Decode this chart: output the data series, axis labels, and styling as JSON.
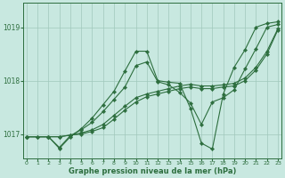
{
  "title": "Graphe pression niveau de la mer (hPa)",
  "bg_color": "#c8e8e0",
  "grid_color": "#a0c8bc",
  "line_color": "#2d6e3e",
  "xlim": [
    -0.3,
    23.3
  ],
  "ylim": [
    1016.55,
    1019.45
  ],
  "yticks": [
    1017,
    1018,
    1019
  ],
  "xticks": [
    0,
    1,
    2,
    3,
    4,
    5,
    6,
    7,
    8,
    9,
    10,
    11,
    12,
    13,
    14,
    15,
    16,
    17,
    18,
    19,
    20,
    21,
    22,
    23
  ],
  "series": [
    {
      "x": [
        0,
        1,
        2,
        3,
        4,
        5,
        6,
        7,
        8,
        9,
        10,
        11,
        12,
        13,
        14,
        15,
        16,
        17,
        18,
        19,
        20,
        21,
        22,
        23
      ],
      "y": [
        1016.95,
        1016.95,
        1016.95,
        1016.73,
        1016.95,
        1017.1,
        1017.3,
        1017.55,
        1017.8,
        1018.18,
        1018.55,
        1018.55,
        1018.0,
        1017.97,
        1017.95,
        1017.48,
        1016.83,
        1016.72,
        1017.75,
        1018.25,
        1018.58,
        1019.0,
        1019.07,
        1019.1
      ]
    },
    {
      "x": [
        0,
        1,
        2,
        3,
        4,
        5,
        6,
        7,
        8,
        9,
        10,
        11,
        12,
        13,
        14,
        15,
        16,
        17,
        18,
        19,
        20,
        21,
        22,
        23
      ],
      "y": [
        1016.95,
        1016.95,
        1016.95,
        1016.75,
        1016.97,
        1017.08,
        1017.22,
        1017.42,
        1017.65,
        1017.88,
        1018.28,
        1018.35,
        1017.98,
        1017.92,
        1017.78,
        1017.58,
        1017.18,
        1017.6,
        1017.68,
        1017.83,
        1018.22,
        1018.6,
        1019.0,
        1019.05
      ]
    },
    {
      "x": [
        0,
        2,
        3,
        4,
        5,
        6,
        7,
        8,
        9,
        10,
        11,
        12,
        13,
        14,
        15,
        16,
        17,
        18,
        19,
        20,
        21,
        22,
        23
      ],
      "y": [
        1016.95,
        1016.95,
        1016.95,
        1016.98,
        1017.02,
        1017.08,
        1017.18,
        1017.35,
        1017.52,
        1017.68,
        1017.75,
        1017.8,
        1017.85,
        1017.9,
        1017.93,
        1017.9,
        1017.9,
        1017.92,
        1017.95,
        1018.05,
        1018.25,
        1018.55,
        1018.97
      ]
    },
    {
      "x": [
        0,
        2,
        3,
        4,
        5,
        6,
        7,
        8,
        9,
        10,
        11,
        12,
        13,
        14,
        15,
        16,
        17,
        18,
        19,
        20,
        21,
        22,
        23
      ],
      "y": [
        1016.95,
        1016.95,
        1016.95,
        1016.98,
        1017.0,
        1017.05,
        1017.12,
        1017.28,
        1017.45,
        1017.6,
        1017.7,
        1017.75,
        1017.8,
        1017.85,
        1017.88,
        1017.85,
        1017.85,
        1017.88,
        1017.9,
        1018.0,
        1018.2,
        1018.5,
        1018.95
      ]
    }
  ]
}
